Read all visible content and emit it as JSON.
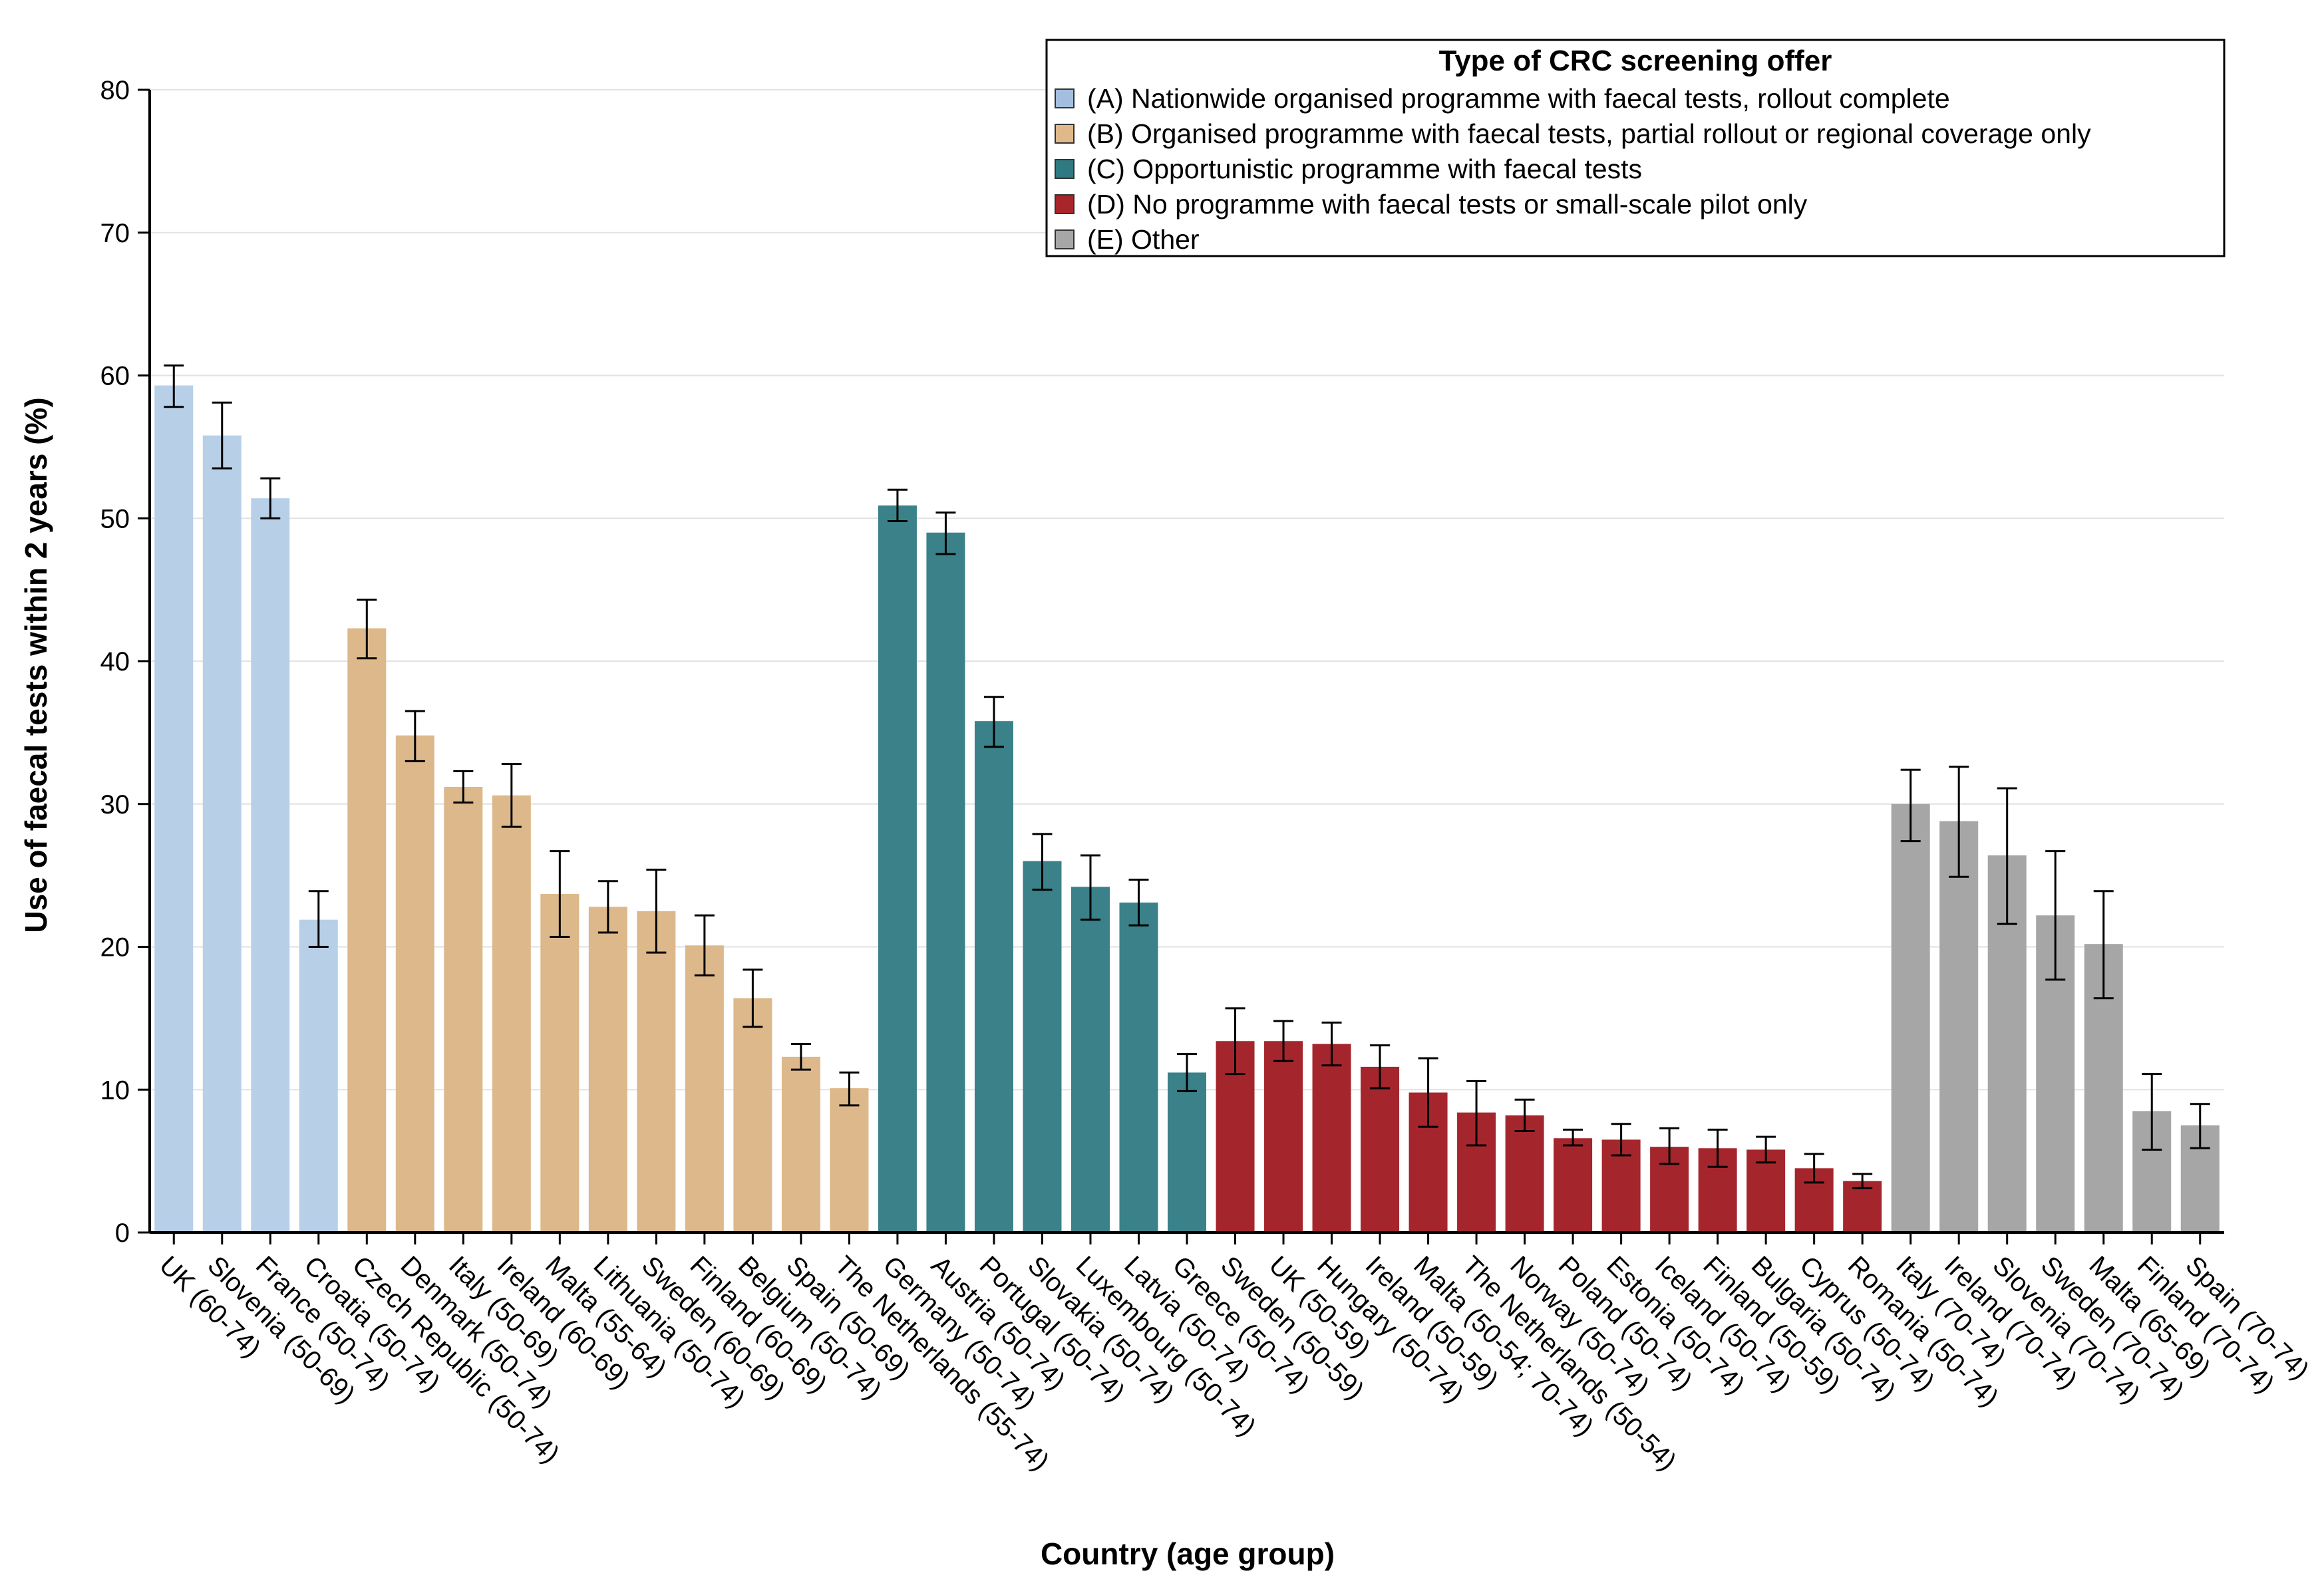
{
  "chart_data": {
    "type": "bar",
    "title": "",
    "xlabel": "Country (age group)",
    "ylabel": "Use of faecal tests within 2 years (%)",
    "ylim": [
      0,
      80
    ],
    "yticks": [
      0,
      10,
      20,
      30,
      40,
      50,
      60,
      70,
      80
    ],
    "grid": true,
    "legend": {
      "title": "Type of CRC screening offer",
      "position": "top-right",
      "entries": [
        {
          "key": "A",
          "label": "(A) Nationwide organised programme with faecal tests, rollout complete",
          "color": "#b8cfe8",
          "swatch": "#a3bede"
        },
        {
          "key": "B",
          "label": "(B) Organised programme with faecal tests, partial rollout or regional coverage only",
          "color": "#ddb88b",
          "swatch": "#e0b98a"
        },
        {
          "key": "C",
          "label": "(C) Opportunistic programme with faecal tests",
          "color": "#3a8189",
          "swatch": "#2f7a82"
        },
        {
          "key": "D",
          "label": "(D) No programme with faecal tests or small-scale pilot only",
          "color": "#a4262c",
          "swatch": "#a8262a"
        },
        {
          "key": "E",
          "label": "(E) Other",
          "color": "#a6a6a6",
          "swatch": "#a6a6a6"
        }
      ]
    },
    "bars": [
      {
        "label": "UK (60-74)",
        "value": 59.3,
        "low": 57.8,
        "high": 60.7,
        "group": "A"
      },
      {
        "label": "Slovenia (50-69)",
        "value": 55.8,
        "low": 53.5,
        "high": 58.1,
        "group": "A"
      },
      {
        "label": "France (50-74)",
        "value": 51.4,
        "low": 50.0,
        "high": 52.8,
        "group": "A"
      },
      {
        "label": "Croatia (50-74)",
        "value": 21.9,
        "low": 20.0,
        "high": 23.9,
        "group": "A"
      },
      {
        "label": "Czech Republic (50-74)",
        "value": 42.3,
        "low": 40.2,
        "high": 44.3,
        "group": "B"
      },
      {
        "label": "Denmark (50-74)",
        "value": 34.8,
        "low": 33.0,
        "high": 36.5,
        "group": "B"
      },
      {
        "label": "Italy (50-69)",
        "value": 31.2,
        "low": 30.1,
        "high": 32.3,
        "group": "B"
      },
      {
        "label": "Ireland (60-69)",
        "value": 30.6,
        "low": 28.4,
        "high": 32.8,
        "group": "B"
      },
      {
        "label": "Malta (55-64)",
        "value": 23.7,
        "low": 20.7,
        "high": 26.7,
        "group": "B"
      },
      {
        "label": "Lithuania (50-74)",
        "value": 22.8,
        "low": 21.0,
        "high": 24.6,
        "group": "B"
      },
      {
        "label": "Sweden (60-69)",
        "value": 22.5,
        "low": 19.6,
        "high": 25.4,
        "group": "B"
      },
      {
        "label": "Finland (60-69)",
        "value": 20.1,
        "low": 18.0,
        "high": 22.2,
        "group": "B"
      },
      {
        "label": "Belgium (50-74)",
        "value": 16.4,
        "low": 14.4,
        "high": 18.4,
        "group": "B"
      },
      {
        "label": "Spain (50-69)",
        "value": 12.3,
        "low": 11.4,
        "high": 13.2,
        "group": "B"
      },
      {
        "label": "The Netherlands (55-74)",
        "value": 10.1,
        "low": 8.9,
        "high": 11.2,
        "group": "B"
      },
      {
        "label": "Germany (50-74)",
        "value": 50.9,
        "low": 49.8,
        "high": 52.0,
        "group": "C"
      },
      {
        "label": "Austria (50-74)",
        "value": 49.0,
        "low": 47.5,
        "high": 50.4,
        "group": "C"
      },
      {
        "label": "Portugal (50-74)",
        "value": 35.8,
        "low": 34.0,
        "high": 37.5,
        "group": "C"
      },
      {
        "label": "Slovakia (50-74)",
        "value": 26.0,
        "low": 24.0,
        "high": 27.9,
        "group": "C"
      },
      {
        "label": "Luxembourg (50-74)",
        "value": 24.2,
        "low": 21.9,
        "high": 26.4,
        "group": "C"
      },
      {
        "label": "Latvia (50-74)",
        "value": 23.1,
        "low": 21.5,
        "high": 24.7,
        "group": "C"
      },
      {
        "label": "Greece (50-74)",
        "value": 11.2,
        "low": 9.9,
        "high": 12.5,
        "group": "C"
      },
      {
        "label": "Sweden (50-59)",
        "value": 13.4,
        "low": 11.1,
        "high": 15.7,
        "group": "D"
      },
      {
        "label": "UK (50-59)",
        "value": 13.4,
        "low": 12.0,
        "high": 14.8,
        "group": "D"
      },
      {
        "label": "Hungary (50-74)",
        "value": 13.2,
        "low": 11.7,
        "high": 14.7,
        "group": "D"
      },
      {
        "label": "Ireland (50-59)",
        "value": 11.6,
        "low": 10.1,
        "high": 13.1,
        "group": "D"
      },
      {
        "label": "Malta (50-54; 70-74)",
        "value": 9.8,
        "low": 7.4,
        "high": 12.2,
        "group": "D"
      },
      {
        "label": "The Netherlands (50-54)",
        "value": 8.4,
        "low": 6.1,
        "high": 10.6,
        "group": "D"
      },
      {
        "label": "Norway (50-74)",
        "value": 8.2,
        "low": 7.1,
        "high": 9.3,
        "group": "D"
      },
      {
        "label": "Poland (50-74)",
        "value": 6.6,
        "low": 6.1,
        "high": 7.2,
        "group": "D"
      },
      {
        "label": "Estonia (50-74)",
        "value": 6.5,
        "low": 5.4,
        "high": 7.6,
        "group": "D"
      },
      {
        "label": "Iceland (50-74)",
        "value": 6.0,
        "low": 4.8,
        "high": 7.3,
        "group": "D"
      },
      {
        "label": "Finland (50-59)",
        "value": 5.9,
        "low": 4.6,
        "high": 7.2,
        "group": "D"
      },
      {
        "label": "Bulgaria (50-74)",
        "value": 5.8,
        "low": 4.9,
        "high": 6.7,
        "group": "D"
      },
      {
        "label": "Cyprus (50-74)",
        "value": 4.5,
        "low": 3.5,
        "high": 5.5,
        "group": "D"
      },
      {
        "label": "Romania (50-74)",
        "value": 3.6,
        "low": 3.1,
        "high": 4.1,
        "group": "D"
      },
      {
        "label": "Italy (70-74)",
        "value": 30.0,
        "low": 27.4,
        "high": 32.4,
        "group": "E"
      },
      {
        "label": "Ireland (70-74)",
        "value": 28.8,
        "low": 24.9,
        "high": 32.6,
        "group": "E"
      },
      {
        "label": "Slovenia (70-74)",
        "value": 26.4,
        "low": 21.6,
        "high": 31.1,
        "group": "E"
      },
      {
        "label": "Sweden (70-74)",
        "value": 22.2,
        "low": 17.7,
        "high": 26.7,
        "group": "E"
      },
      {
        "label": "Malta (65-69)",
        "value": 20.2,
        "low": 16.4,
        "high": 23.9,
        "group": "E"
      },
      {
        "label": "Finland (70-74)",
        "value": 8.5,
        "low": 5.8,
        "high": 11.1,
        "group": "E"
      },
      {
        "label": "Spain (70-74)",
        "value": 7.5,
        "low": 5.9,
        "high": 9.0,
        "group": "E"
      }
    ]
  }
}
